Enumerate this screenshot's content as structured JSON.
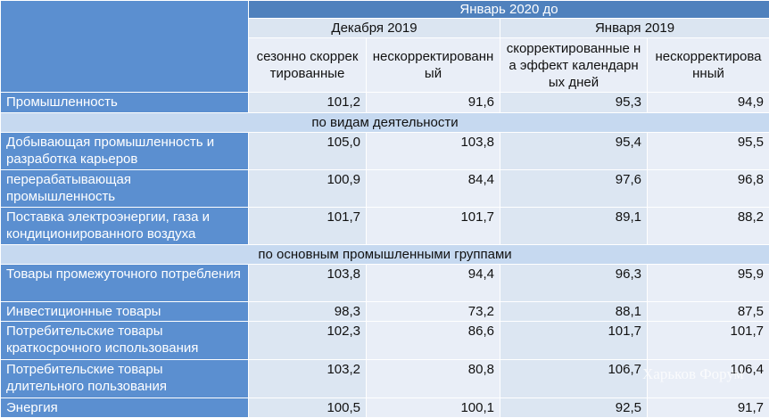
{
  "header": {
    "top": "Январь 2020 до",
    "groups": [
      "Декабря 2019",
      "Января 2019"
    ],
    "subcolumns": [
      "сезонно скорректированные",
      "нескорректированный",
      "скорректированные на эффект календарных дней",
      "нескорректированный"
    ]
  },
  "rows": [
    {
      "label": "Промышленность",
      "values": [
        "101,2",
        "91,6",
        "95,3",
        "94,9"
      ]
    },
    {
      "section": "по видам деятельности"
    },
    {
      "label": "Добывающая промышленность и разработка карьеров",
      "values": [
        "105,0",
        "103,8",
        "95,4",
        "95,5"
      ]
    },
    {
      "label": "перерабатывающая промышленность",
      "values": [
        "100,9",
        "84,4",
        "97,6",
        "96,8"
      ]
    },
    {
      "label": "Поставка электроэнергии, газа и кондиционированного воздуха",
      "values": [
        "101,7",
        "101,7",
        "89,1",
        "88,2"
      ]
    },
    {
      "section": "по основным промышленными группами"
    },
    {
      "label": "Товары промежуточного потребления",
      "values": [
        "103,8",
        "94,4",
        "96,3",
        "95,9"
      ]
    },
    {
      "label": "Инвестиционные товары",
      "values": [
        "98,3",
        "73,2",
        "88,1",
        "87,5"
      ]
    },
    {
      "label": "Потребительские товары краткосрочного использования",
      "values": [
        "102,3",
        "86,6",
        "101,7",
        "101,7"
      ]
    },
    {
      "label": "Потребительские товары длительного пользования",
      "values": [
        "103,2",
        "80,8",
        "106,7",
        "106,4"
      ]
    },
    {
      "label": "Энергия",
      "values": [
        "100,5",
        "100,1",
        "92,5",
        "91,7"
      ]
    }
  ],
  "watermark": "Харьков Форум"
}
